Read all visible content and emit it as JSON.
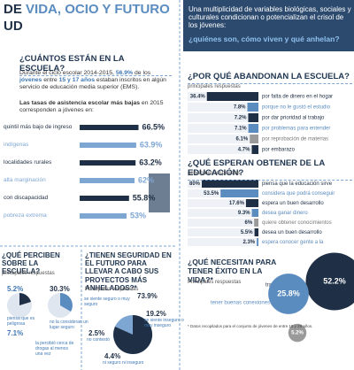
{
  "header": {
    "title_dark": "DE ",
    "title_blue": "VIDA, OCIO Y FUTURO",
    "title_line2": "UD"
  },
  "intro": {
    "text": "Una multiplicidad de variables biológicas, sociales y culturales condicionan o potencializan el crisol de los jóvenes:",
    "question": "¿quiénes son, cómo viven y qué anhelan?"
  },
  "school": {
    "heading": "¿CUÁNTOS ESTÁN EN LA ESCUELA?",
    "paragraph": [
      "Durante el ciclo escolar 2014-2015, ",
      "56.9%",
      " de los ",
      "jóvenes",
      " entre ",
      "15 y 17 años",
      " estaban inscritos en algún servicio de educación media superior (EMS)."
    ],
    "note_bold": "Las tasas de asistencia escolar más bajas",
    "note_rest": " en 2015 corresponden a jóvenes en:",
    "bars": [
      {
        "label": "quintil más bajo de ingreso",
        "value": 66.5,
        "value_label": "66.5%",
        "color": "#1f2f45"
      },
      {
        "label": "indígenas",
        "value": 63.9,
        "value_label": "63.9%",
        "color": "#7ea6d3"
      },
      {
        "label": "localidades rurales",
        "value": 63.2,
        "value_label": "63.2%",
        "color": "#1f2f45"
      },
      {
        "label": "alta marginación",
        "value": 62,
        "value_label": "62%",
        "color": "#7ea6d3"
      },
      {
        "label": "con discapacidad",
        "value": 55.8,
        "value_label": "55.8%",
        "color": "#1f2f45"
      },
      {
        "label": "pobreza extrema",
        "value": 53,
        "value_label": "53%",
        "color": "#7ea6d3"
      }
    ]
  },
  "dropout": {
    "heading": "¿POR QUÉ ABANDONAN LA ESCUELA?",
    "subheading": "principales respuestas",
    "bars": [
      {
        "label": "por falta de dinero en el hogar",
        "value": 36.4,
        "value_label": "36.4%",
        "color": "#1f2f45"
      },
      {
        "label": "porque no le gustó el estudio",
        "value": 7.8,
        "value_label": "7.8%",
        "color": "#5b8cc0"
      },
      {
        "label": "por dar prioridad al trabajo",
        "value": 7.2,
        "value_label": "7.2%",
        "color": "#1f2f45"
      },
      {
        "label": "por problemas para entender",
        "value": 7.1,
        "value_label": "7.1%",
        "color": "#5b8cc0"
      },
      {
        "label": "por reprobación de materias",
        "value": 6.1,
        "value_label": "6.1%",
        "color": "#9a9a9a"
      },
      {
        "label": "por embarazo",
        "value": 4.7,
        "value_label": "4.7%",
        "color": "#1f2f45"
      }
    ]
  },
  "expect": {
    "heading": "¿QUÉ ESPERAN OBTENER DE LA EDUCACIÓN?",
    "subheading": "principales respuestas",
    "bars": [
      {
        "label": "piensa que la educación sirve",
        "value": 80,
        "value_label": "80%",
        "color": "#1f2f45"
      },
      {
        "label": "considera que podrá conseguir",
        "value": 53.5,
        "value_label": "53.5%",
        "color": "#5b8cc0"
      },
      {
        "label": "espera un buen desarrollo",
        "value": 17.6,
        "value_label": "17.6%",
        "color": "#1f2f45"
      },
      {
        "label": "desea ganar dinero",
        "value": 9.3,
        "value_label": "9.3%",
        "color": "#5b8cc0"
      },
      {
        "label": "quiere obtener conocimientos",
        "value": 6,
        "value_label": "6%",
        "color": "#9a9a9a"
      },
      {
        "label": "desea un buen desarrollo",
        "value": 5.5,
        "value_label": "5.5%",
        "color": "#1f2f45"
      },
      {
        "label": "espera conocer gente a la",
        "value": 2.3,
        "value_label": "2.3%",
        "color": "#5b8cc0"
      }
    ]
  },
  "perceive": {
    "heading": "¿QUÉ PERCIBEN SOBRE LA ESCUELA?",
    "subheading": "principales respuestas",
    "items": [
      {
        "value_label": "5.2%",
        "label": "piensa que es peligrosa"
      },
      {
        "value_label": "30.3%",
        "label": "no la consideran un lugar seguro"
      },
      {
        "value_label": "7.1%",
        "label": "la percibió cerca de drogas al menos una vez"
      }
    ]
  },
  "security": {
    "heading": "¿TIENEN SEGURIDAD EN EL FUTURO PARA LLEVAR A CABO SUS PROYECTOS MÁS ANHELADOS?*",
    "subheading": "Principales respuestas",
    "items": [
      {
        "value_label": "73.9%",
        "label": "se siente seguro o muy seguro"
      },
      {
        "value_label": "2.5%",
        "label": "no contestó"
      },
      {
        "value_label": "19.2%",
        "label": "se siente inseguro o muy inseguro"
      },
      {
        "value_label": "4.4%",
        "label": "ni seguro ni inseguro"
      }
    ]
  },
  "success": {
    "heading": "¿QUÉ NECESITAN PARA TENER ÉXITO EN LA VIDA?*",
    "subheading": "Principales respuestas",
    "items": [
      {
        "value": 52.2,
        "value_label": "52.2%",
        "label": "trabajar duro",
        "color": "#1f2f45"
      },
      {
        "value": 25.8,
        "value_label": "25.8%",
        "label": "tener buenas conexiones y contactos",
        "color": "#5b8cc0"
      },
      {
        "value": 5.2,
        "value_label": "5.2%",
        "color": "#9a9a9a"
      }
    ]
  },
  "footnote": "* Datos recopilados para el conjunto de jóvenes de entre 15 y 29 años."
}
